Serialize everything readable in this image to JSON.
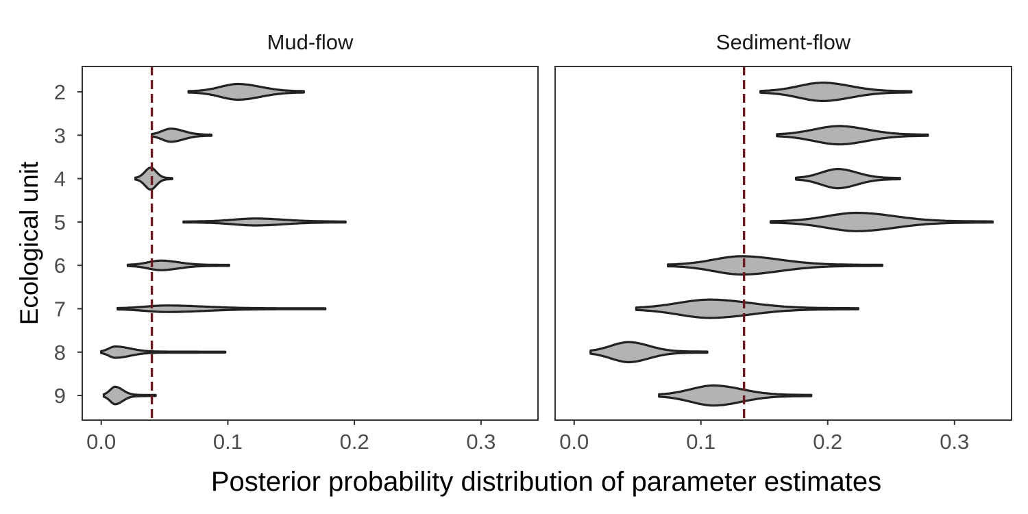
{
  "chart_data": {
    "type": "violin",
    "orientation": "horizontal",
    "xlabel": "Posterior probability distribution of parameter estimates",
    "ylabel": "Ecological unit",
    "categories": [
      "2",
      "3",
      "4",
      "5",
      "6",
      "7",
      "8",
      "9"
    ],
    "x_ticks": [
      0.0,
      0.1,
      0.2,
      0.3
    ],
    "x_tick_labels": [
      "0.0",
      "0.1",
      "0.2",
      "0.3"
    ],
    "xlim": [
      -0.015,
      0.345
    ],
    "grid": false,
    "colors": {
      "fill": "#b3b3b3",
      "outline": "#222222",
      "ref_line": "#6b1b1f"
    },
    "panels": [
      {
        "title": "Mud-flow",
        "reference_line": 0.04,
        "violins": [
          {
            "unit": "2",
            "min": 0.069,
            "max": 0.16,
            "mode": 0.108,
            "spread_left": 0.014,
            "spread_right": 0.018,
            "max_width": 0.34
          },
          {
            "unit": "3",
            "min": 0.04,
            "max": 0.087,
            "mode": 0.055,
            "spread_left": 0.007,
            "spread_right": 0.01,
            "max_width": 0.28
          },
          {
            "unit": "4",
            "min": 0.027,
            "max": 0.056,
            "mode": 0.039,
            "spread_left": 0.0045,
            "spread_right": 0.0045,
            "max_width": 0.48
          },
          {
            "unit": "5",
            "min": 0.065,
            "max": 0.193,
            "mode": 0.122,
            "spread_left": 0.018,
            "spread_right": 0.022,
            "max_width": 0.14
          },
          {
            "unit": "6",
            "min": 0.021,
            "max": 0.101,
            "mode": 0.047,
            "spread_left": 0.01,
            "spread_right": 0.014,
            "max_width": 0.2
          },
          {
            "unit": "7",
            "min": 0.013,
            "max": 0.177,
            "mode": 0.052,
            "spread_left": 0.017,
            "spread_right": 0.03,
            "max_width": 0.13
          },
          {
            "unit": "8",
            "min": 0.0,
            "max": 0.098,
            "mode": 0.011,
            "spread_left": 0.005,
            "spread_right": 0.012,
            "max_width": 0.24
          },
          {
            "unit": "9",
            "min": 0.002,
            "max": 0.043,
            "mode": 0.011,
            "spread_left": 0.004,
            "spread_right": 0.006,
            "max_width": 0.38
          }
        ]
      },
      {
        "title": "Sediment-flow",
        "reference_line": 0.134,
        "violins": [
          {
            "unit": "2",
            "min": 0.147,
            "max": 0.266,
            "mode": 0.196,
            "spread_left": 0.019,
            "spread_right": 0.022,
            "max_width": 0.4
          },
          {
            "unit": "3",
            "min": 0.16,
            "max": 0.279,
            "mode": 0.209,
            "spread_left": 0.02,
            "spread_right": 0.022,
            "max_width": 0.4
          },
          {
            "unit": "4",
            "min": 0.175,
            "max": 0.257,
            "mode": 0.208,
            "spread_left": 0.013,
            "spread_right": 0.015,
            "max_width": 0.42
          },
          {
            "unit": "5",
            "min": 0.155,
            "max": 0.33,
            "mode": 0.223,
            "spread_left": 0.024,
            "spread_right": 0.03,
            "max_width": 0.4
          },
          {
            "unit": "6",
            "min": 0.074,
            "max": 0.243,
            "mode": 0.132,
            "spread_left": 0.022,
            "spread_right": 0.03,
            "max_width": 0.4
          },
          {
            "unit": "7",
            "min": 0.049,
            "max": 0.224,
            "mode": 0.107,
            "spread_left": 0.025,
            "spread_right": 0.032,
            "max_width": 0.4
          },
          {
            "unit": "8",
            "min": 0.013,
            "max": 0.105,
            "mode": 0.043,
            "spread_left": 0.014,
            "spread_right": 0.016,
            "max_width": 0.44
          },
          {
            "unit": "9",
            "min": 0.067,
            "max": 0.187,
            "mode": 0.11,
            "spread_left": 0.018,
            "spread_right": 0.022,
            "max_width": 0.44
          }
        ]
      }
    ]
  }
}
